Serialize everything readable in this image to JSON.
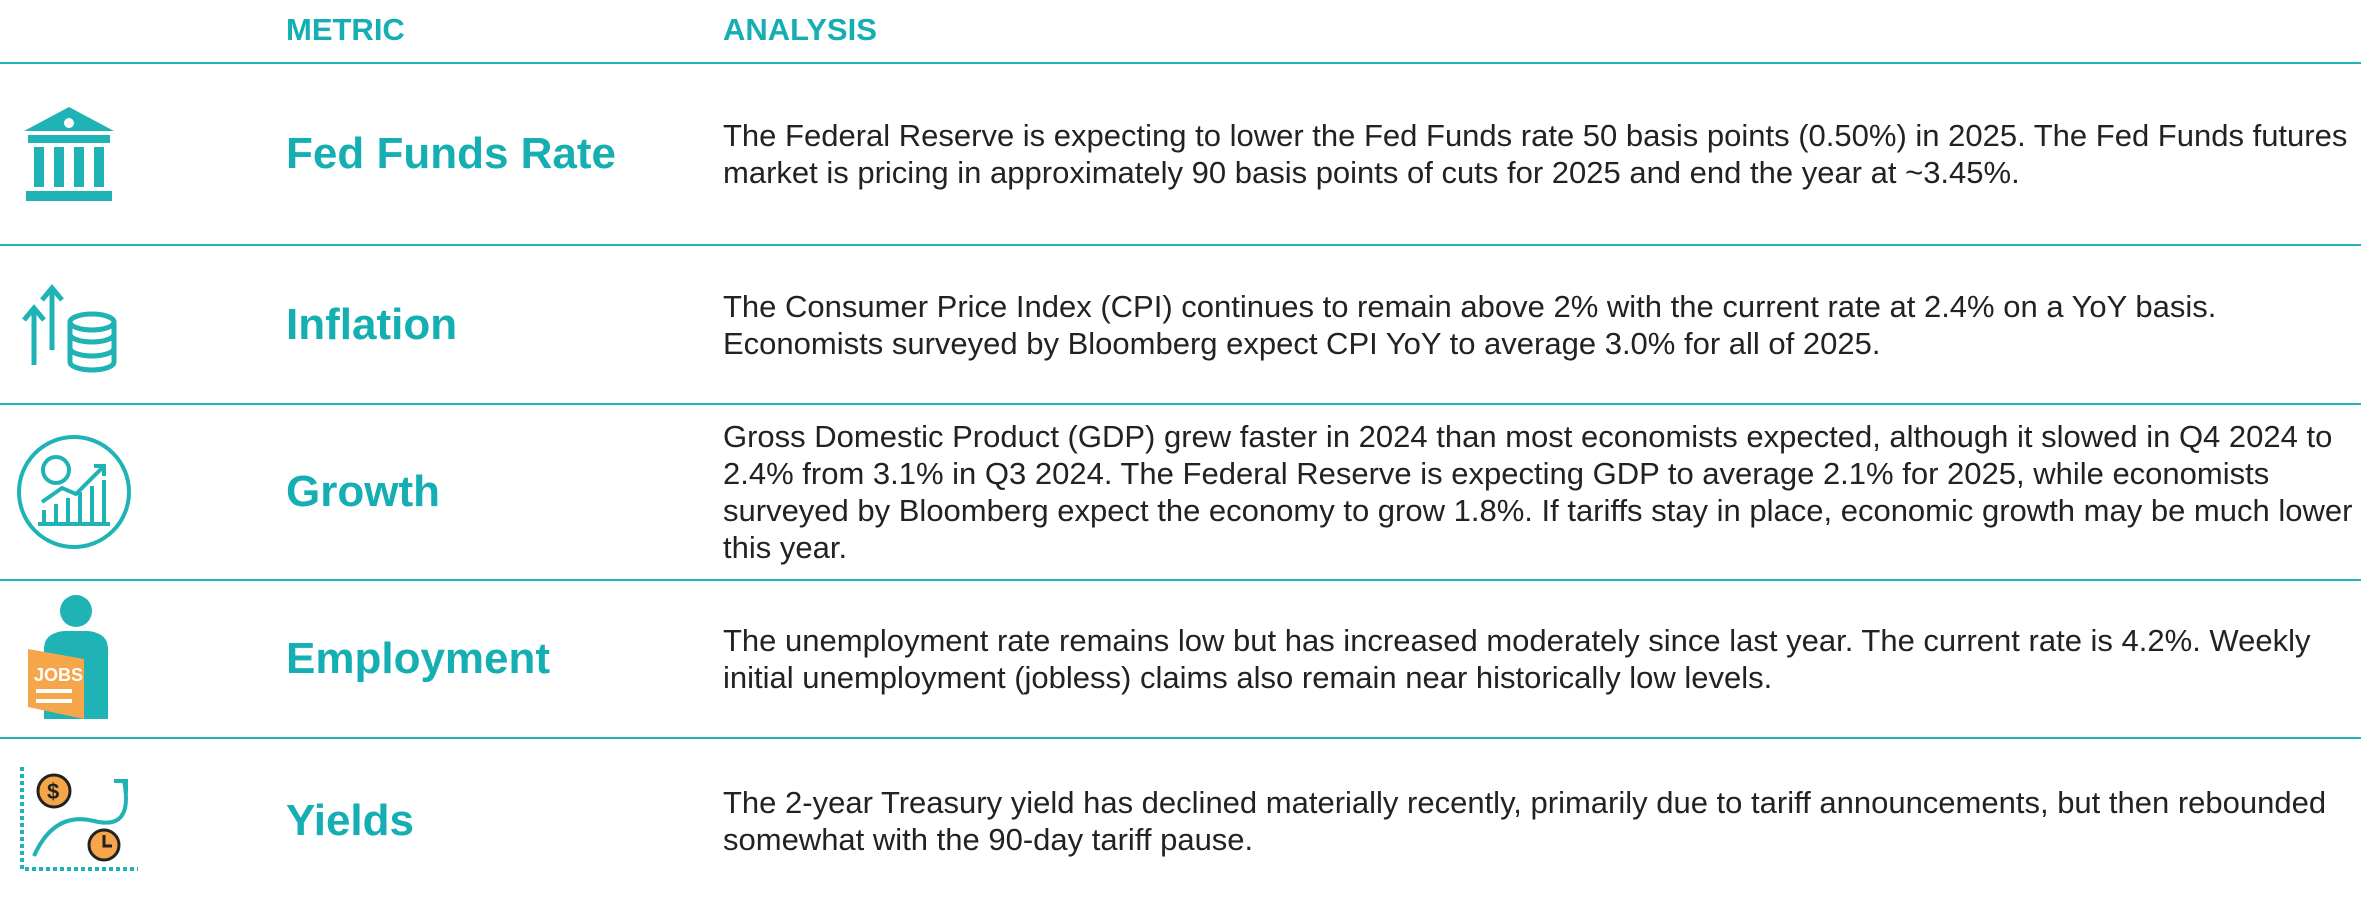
{
  "header": {
    "metric": "METRIC",
    "analysis": "ANALYSIS"
  },
  "rows": [
    {
      "metric": "Fed Funds Rate",
      "analysis": "The Federal Reserve is expecting to lower the Fed Funds rate 50 basis points (0.50%) in 2025. The Fed Funds futures market is pricing in approximately 90 basis points of cuts for 2025 and end the year at ~3.45%."
    },
    {
      "metric": "Inflation",
      "analysis": "The Consumer Price Index (CPI) continues to remain above 2% with the current rate at 2.4% on a YoY basis. Economists surveyed by Bloomberg expect CPI YoY to average 3.0% for all of 2025."
    },
    {
      "metric": "Growth",
      "analysis": "Gross Domestic Product (GDP) grew faster in 2024 than most economists expected, although it slowed in Q4 2024 to 2.4% from 3.1% in Q3 2024. The Federal Reserve is expecting GDP to average 2.1% for 2025, while economists surveyed by Bloomberg expect the economy to grow 1.8%. If tariffs stay in place, economic growth may be much lower this year."
    },
    {
      "metric": "Employment",
      "analysis": "The unemployment rate remains low but has increased moderately since last year. The current rate is 4.2%. Weekly initial unemployment (jobless) claims also remain near historically low levels."
    },
    {
      "metric": "Yields",
      "analysis": "The 2-year Treasury yield has declined materially recently, primarily due to tariff announcements, but then rebounded somewhat with the 90-day tariff pause."
    }
  ]
}
